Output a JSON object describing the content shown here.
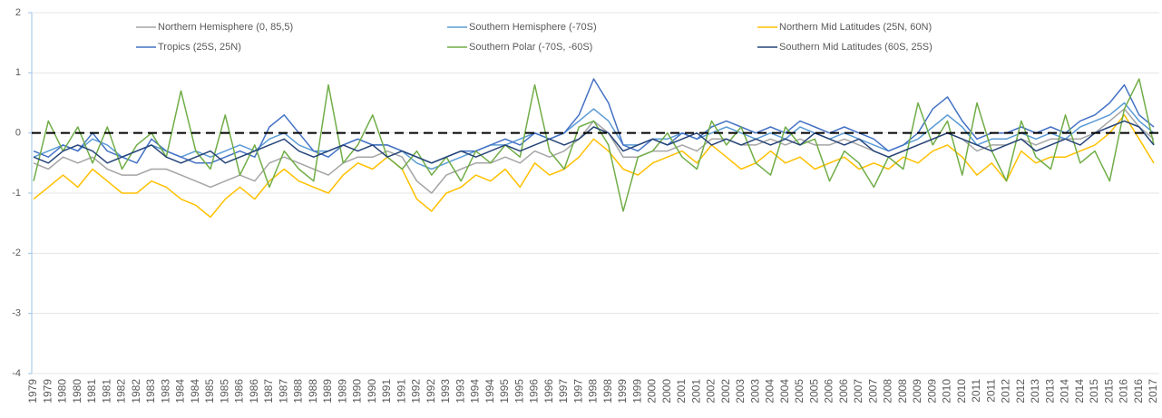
{
  "chart_data": {
    "type": "line",
    "categories": [
      "1979",
      "1979",
      "1980",
      "1980",
      "1981",
      "1981",
      "1982",
      "1982",
      "1983",
      "1983",
      "1984",
      "1984",
      "1985",
      "1985",
      "1986",
      "1986",
      "1987",
      "1987",
      "1988",
      "1988",
      "1989",
      "1989",
      "1990",
      "1990",
      "1991",
      "1991",
      "1992",
      "1992",
      "1993",
      "1993",
      "1994",
      "1994",
      "1995",
      "1995",
      "1996",
      "1996",
      "1997",
      "1997",
      "1998",
      "1998",
      "1999",
      "1999",
      "2000",
      "2000",
      "2001",
      "2001",
      "2002",
      "2002",
      "2003",
      "2003",
      "2004",
      "2004",
      "2005",
      "2005",
      "2006",
      "2006",
      "2007",
      "2007",
      "2008",
      "2008",
      "2009",
      "2009",
      "2010",
      "2010",
      "2011",
      "2011",
      "2012",
      "2012",
      "2013",
      "2013",
      "2014",
      "2014",
      "2015",
      "2015",
      "2016",
      "2016",
      "2017"
    ],
    "series": [
      {
        "name": "Northern Hemisphere (0, 85,5)",
        "color": "#a5a5a5",
        "values": [
          -0.5,
          -0.6,
          -0.4,
          -0.5,
          -0.4,
          -0.6,
          -0.7,
          -0.7,
          -0.6,
          -0.6,
          -0.7,
          -0.8,
          -0.9,
          -0.8,
          -0.7,
          -0.8,
          -0.5,
          -0.4,
          -0.5,
          -0.6,
          -0.7,
          -0.5,
          -0.4,
          -0.4,
          -0.3,
          -0.4,
          -0.8,
          -1.0,
          -0.7,
          -0.6,
          -0.5,
          -0.5,
          -0.4,
          -0.5,
          -0.3,
          -0.4,
          -0.3,
          -0.1,
          0.2,
          0.0,
          -0.4,
          -0.4,
          -0.3,
          -0.3,
          -0.2,
          -0.3,
          -0.1,
          -0.1,
          -0.2,
          -0.2,
          -0.1,
          -0.2,
          -0.1,
          -0.2,
          -0.2,
          -0.1,
          -0.2,
          -0.3,
          -0.4,
          -0.3,
          -0.2,
          -0.1,
          0.0,
          -0.1,
          -0.3,
          -0.2,
          -0.2,
          -0.1,
          -0.2,
          -0.1,
          -0.1,
          -0.1,
          0.0,
          0.2,
          0.4,
          0.1,
          -0.1
        ]
      },
      {
        "name": "Southern Hemisphere (-70S)",
        "color": "#5b9bd5",
        "values": [
          -0.4,
          -0.3,
          -0.2,
          -0.3,
          -0.1,
          -0.2,
          -0.4,
          -0.3,
          -0.2,
          -0.3,
          -0.4,
          -0.3,
          -0.4,
          -0.3,
          -0.2,
          -0.3,
          -0.1,
          0.0,
          -0.2,
          -0.3,
          -0.3,
          -0.2,
          -0.1,
          -0.2,
          -0.2,
          -0.3,
          -0.5,
          -0.6,
          -0.5,
          -0.4,
          -0.3,
          -0.2,
          -0.2,
          -0.1,
          0.0,
          -0.1,
          0.0,
          0.2,
          0.4,
          0.2,
          -0.2,
          -0.2,
          -0.1,
          -0.1,
          0.0,
          -0.1,
          0.0,
          0.1,
          0.0,
          -0.1,
          0.0,
          -0.1,
          0.1,
          0.0,
          -0.1,
          0.0,
          -0.1,
          -0.2,
          -0.3,
          -0.2,
          -0.1,
          0.1,
          0.3,
          0.1,
          -0.2,
          -0.1,
          -0.1,
          0.0,
          -0.1,
          0.0,
          -0.1,
          0.1,
          0.2,
          0.3,
          0.5,
          0.2,
          0.0
        ]
      },
      {
        "name": "Northern Mid Latitudes (25N, 60N)",
        "color": "#ffc000",
        "values": [
          -1.1,
          -0.9,
          -0.7,
          -0.9,
          -0.6,
          -0.8,
          -1.0,
          -1.0,
          -0.8,
          -0.9,
          -1.1,
          -1.2,
          -1.4,
          -1.1,
          -0.9,
          -1.1,
          -0.8,
          -0.6,
          -0.8,
          -0.9,
          -1.0,
          -0.7,
          -0.5,
          -0.6,
          -0.4,
          -0.6,
          -1.1,
          -1.3,
          -1.0,
          -0.9,
          -0.7,
          -0.8,
          -0.6,
          -0.9,
          -0.5,
          -0.7,
          -0.6,
          -0.4,
          -0.1,
          -0.3,
          -0.6,
          -0.7,
          -0.5,
          -0.4,
          -0.3,
          -0.5,
          -0.2,
          -0.4,
          -0.6,
          -0.5,
          -0.3,
          -0.5,
          -0.4,
          -0.6,
          -0.5,
          -0.4,
          -0.6,
          -0.5,
          -0.6,
          -0.4,
          -0.5,
          -0.3,
          -0.2,
          -0.4,
          -0.7,
          -0.5,
          -0.8,
          -0.3,
          -0.5,
          -0.4,
          -0.4,
          -0.3,
          -0.2,
          0.0,
          0.3,
          -0.1,
          -0.5
        ]
      },
      {
        "name": "Tropics (25S, 25N)",
        "color": "#4472c4",
        "values": [
          -0.3,
          -0.4,
          -0.2,
          -0.3,
          0.0,
          -0.3,
          -0.4,
          -0.5,
          -0.1,
          -0.3,
          -0.4,
          -0.5,
          -0.5,
          -0.4,
          -0.3,
          -0.4,
          0.1,
          0.3,
          0.0,
          -0.3,
          -0.4,
          -0.2,
          -0.1,
          -0.2,
          -0.2,
          -0.3,
          -0.4,
          -0.5,
          -0.4,
          -0.3,
          -0.3,
          -0.2,
          -0.1,
          -0.2,
          0.0,
          -0.1,
          0.0,
          0.3,
          0.9,
          0.5,
          -0.2,
          -0.3,
          -0.1,
          -0.2,
          0.0,
          -0.1,
          0.1,
          0.2,
          0.1,
          0.0,
          0.1,
          0.0,
          0.2,
          0.1,
          0.0,
          0.1,
          0.0,
          -0.1,
          -0.3,
          -0.2,
          0.0,
          0.4,
          0.6,
          0.2,
          -0.1,
          0.0,
          0.0,
          0.1,
          0.0,
          0.1,
          0.0,
          0.2,
          0.3,
          0.5,
          0.8,
          0.3,
          0.1
        ]
      },
      {
        "name": "Southern Polar (-70S, -60S)",
        "color": "#70ad47",
        "values": [
          -0.8,
          0.2,
          -0.3,
          0.1,
          -0.5,
          0.1,
          -0.6,
          -0.2,
          0.0,
          -0.4,
          0.7,
          -0.3,
          -0.6,
          0.3,
          -0.7,
          -0.2,
          -0.9,
          -0.3,
          -0.6,
          -0.8,
          0.8,
          -0.5,
          -0.2,
          0.3,
          -0.4,
          -0.6,
          -0.3,
          -0.7,
          -0.4,
          -0.8,
          -0.3,
          -0.5,
          -0.2,
          -0.4,
          0.8,
          -0.3,
          -0.6,
          0.1,
          0.2,
          -0.2,
          -1.3,
          -0.4,
          -0.3,
          0.0,
          -0.4,
          -0.6,
          0.2,
          -0.2,
          0.1,
          -0.5,
          -0.7,
          0.1,
          -0.2,
          -0.1,
          -0.8,
          -0.3,
          -0.5,
          -0.9,
          -0.4,
          -0.6,
          0.5,
          -0.2,
          0.2,
          -0.7,
          0.5,
          -0.3,
          -0.8,
          0.2,
          -0.4,
          -0.6,
          0.3,
          -0.5,
          -0.3,
          -0.8,
          0.4,
          0.9,
          -0.2
        ]
      },
      {
        "name": "Southern Mid Latitudes (60S, 25S)",
        "color": "#264478",
        "values": [
          -0.4,
          -0.5,
          -0.3,
          -0.2,
          -0.3,
          -0.5,
          -0.4,
          -0.3,
          -0.2,
          -0.4,
          -0.5,
          -0.4,
          -0.3,
          -0.5,
          -0.4,
          -0.3,
          -0.2,
          -0.1,
          -0.3,
          -0.4,
          -0.3,
          -0.2,
          -0.3,
          -0.2,
          -0.4,
          -0.3,
          -0.4,
          -0.5,
          -0.4,
          -0.3,
          -0.4,
          -0.3,
          -0.2,
          -0.3,
          -0.2,
          -0.1,
          -0.2,
          -0.1,
          0.1,
          0.0,
          -0.3,
          -0.2,
          -0.1,
          -0.2,
          -0.1,
          0.0,
          -0.2,
          -0.1,
          -0.2,
          -0.1,
          -0.2,
          -0.1,
          -0.2,
          0.0,
          -0.1,
          -0.2,
          -0.1,
          -0.3,
          -0.4,
          -0.3,
          -0.2,
          -0.1,
          0.0,
          -0.1,
          -0.2,
          -0.3,
          -0.2,
          -0.1,
          -0.3,
          -0.2,
          -0.1,
          -0.2,
          0.0,
          0.1,
          0.2,
          0.1,
          -0.2
        ]
      }
    ],
    "ylim": [
      -4,
      2
    ],
    "yticks": [
      -4,
      -3,
      -2,
      -1,
      0,
      1,
      2
    ],
    "grid": true,
    "hline": 0,
    "legend": "top"
  }
}
